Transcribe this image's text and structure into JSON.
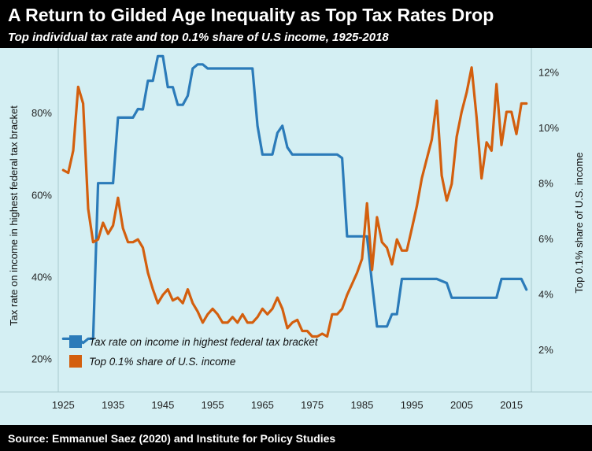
{
  "header": {
    "title": "A Return to Gilded Age Inequality as Top Tax Rates Drop",
    "subtitle": "Top individual tax rate and top 0.1% share of U.S income, 1925-2018"
  },
  "footer": {
    "source": "Source: Emmanuel Saez (2020) and Institute for Policy Studies"
  },
  "colors": {
    "background": "#000000",
    "plot_background": "#d4eff3",
    "tax_rate": "#2b7bb9",
    "income_share": "#d35f0e"
  },
  "chart_data": {
    "type": "line",
    "ylabel": "Tax rate on income in highest federal tax bracket",
    "y2label": "Top 0.1% share of U.S. income",
    "xlim": [
      1924,
      2019
    ],
    "ylim": [
      12,
      96
    ],
    "y2lim": [
      0.5,
      12.9
    ],
    "x_ticks": [
      1925,
      1935,
      1945,
      1955,
      1965,
      1975,
      1985,
      1995,
      2005,
      2015
    ],
    "x_tick_labels": [
      "1925",
      "1935",
      "1945",
      "1955",
      "1965",
      "1975",
      "1985",
      "1995",
      "2005",
      "2015"
    ],
    "y_ticks": [
      20,
      40,
      60,
      80
    ],
    "y_tick_labels": [
      "20%",
      "40%",
      "60%",
      "80%"
    ],
    "y2_ticks": [
      2,
      4,
      6,
      8,
      10,
      12
    ],
    "y2_tick_labels": [
      "2%",
      "4%",
      "6%",
      "8%",
      "10%",
      "12%"
    ],
    "legend": {
      "placement": "bottom-left",
      "entries": [
        "Tax rate on income in highest federal tax bracket",
        "Top 0.1% share of U.S. income"
      ]
    },
    "series": [
      {
        "name": "Tax rate on income in highest federal tax bracket",
        "axis": "left",
        "x": [
          1925,
          1926,
          1927,
          1928,
          1929,
          1930,
          1931,
          1932,
          1933,
          1934,
          1935,
          1936,
          1937,
          1938,
          1939,
          1940,
          1941,
          1942,
          1943,
          1944,
          1945,
          1946,
          1947,
          1948,
          1949,
          1950,
          1951,
          1952,
          1953,
          1954,
          1955,
          1956,
          1957,
          1958,
          1959,
          1960,
          1961,
          1962,
          1963,
          1964,
          1965,
          1966,
          1967,
          1968,
          1969,
          1970,
          1971,
          1972,
          1973,
          1974,
          1975,
          1976,
          1977,
          1978,
          1979,
          1980,
          1981,
          1982,
          1983,
          1984,
          1985,
          1986,
          1987,
          1988,
          1989,
          1990,
          1991,
          1992,
          1993,
          1994,
          1995,
          1996,
          1997,
          1998,
          1999,
          2000,
          2001,
          2002,
          2003,
          2004,
          2005,
          2006,
          2007,
          2008,
          2009,
          2010,
          2011,
          2012,
          2013,
          2014,
          2015,
          2016,
          2017,
          2018
        ],
        "values": [
          25,
          25,
          25,
          25,
          24,
          25,
          25,
          63,
          63,
          63,
          63,
          79,
          79,
          79,
          79,
          81.1,
          81,
          88,
          88,
          94,
          94,
          86.45,
          86.45,
          82.13,
          82.13,
          84.36,
          91,
          92,
          92,
          91,
          91,
          91,
          91,
          91,
          91,
          91,
          91,
          91,
          91,
          77,
          70,
          70,
          70,
          75.25,
          77,
          71.75,
          70,
          70,
          70,
          70,
          70,
          70,
          70,
          70,
          70,
          70,
          69.13,
          50,
          50,
          50,
          50,
          50,
          38.5,
          28,
          28,
          28,
          31,
          31,
          39.6,
          39.6,
          39.6,
          39.6,
          39.6,
          39.6,
          39.6,
          39.6,
          39.1,
          38.6,
          35,
          35,
          35,
          35,
          35,
          35,
          35,
          35,
          35,
          35,
          39.6,
          39.6,
          39.6,
          39.6,
          39.6,
          37
        ]
      },
      {
        "name": "Top 0.1% share of U.S. income",
        "axis": "right",
        "x": [
          1925,
          1926,
          1927,
          1928,
          1929,
          1930,
          1931,
          1932,
          1933,
          1934,
          1935,
          1936,
          1937,
          1938,
          1939,
          1940,
          1941,
          1942,
          1943,
          1944,
          1945,
          1946,
          1947,
          1948,
          1949,
          1950,
          1951,
          1952,
          1953,
          1954,
          1955,
          1956,
          1957,
          1958,
          1959,
          1960,
          1961,
          1962,
          1963,
          1964,
          1965,
          1966,
          1967,
          1968,
          1969,
          1970,
          1971,
          1972,
          1973,
          1974,
          1975,
          1976,
          1977,
          1978,
          1979,
          1980,
          1981,
          1982,
          1983,
          1984,
          1985,
          1986,
          1987,
          1988,
          1989,
          1990,
          1991,
          1992,
          1993,
          1994,
          1995,
          1996,
          1997,
          1998,
          1999,
          2000,
          2001,
          2002,
          2003,
          2004,
          2005,
          2006,
          2007,
          2008,
          2009,
          2010,
          2011,
          2012,
          2013,
          2014,
          2015,
          2016,
          2017,
          2018
        ],
        "values": [
          8.5,
          8.4,
          9.2,
          11.5,
          10.9,
          7.1,
          5.9,
          6.0,
          6.6,
          6.2,
          6.5,
          7.5,
          6.4,
          5.9,
          5.9,
          6.0,
          5.7,
          4.8,
          4.2,
          3.7,
          4.0,
          4.2,
          3.8,
          3.9,
          3.7,
          4.2,
          3.7,
          3.4,
          3.0,
          3.3,
          3.5,
          3.3,
          3.0,
          3.0,
          3.2,
          3.0,
          3.3,
          3.0,
          3.0,
          3.2,
          3.5,
          3.3,
          3.5,
          3.9,
          3.5,
          2.8,
          3.0,
          3.1,
          2.7,
          2.7,
          2.5,
          2.5,
          2.6,
          2.5,
          3.3,
          3.3,
          3.5,
          4.0,
          4.4,
          4.8,
          5.3,
          7.3,
          4.9,
          6.8,
          5.9,
          5.7,
          5.1,
          6.0,
          5.6,
          5.6,
          6.4,
          7.2,
          8.2,
          8.9,
          9.6,
          11.0,
          8.3,
          7.4,
          8.0,
          9.7,
          10.6,
          11.3,
          12.2,
          10.4,
          8.2,
          9.5,
          9.2,
          11.6,
          9.4,
          10.6,
          10.6,
          9.8,
          10.9,
          10.9
        ]
      }
    ]
  }
}
